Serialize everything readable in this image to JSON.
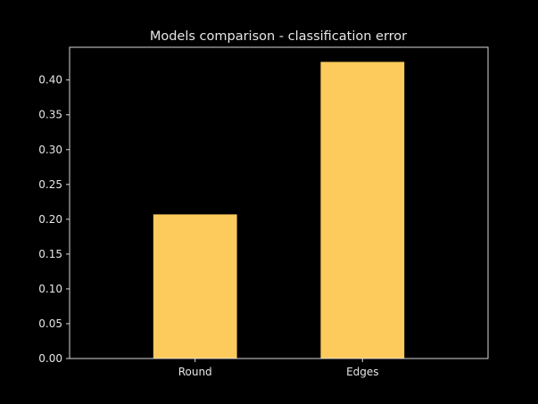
{
  "chart_data": {
    "type": "bar",
    "title": "Models comparison - classification error",
    "xlabel": "",
    "ylabel": "",
    "categories": [
      "Round",
      "Edges"
    ],
    "values": [
      0.207,
      0.426
    ],
    "ylim": [
      0,
      0.447
    ],
    "yticks": [
      "0.00",
      "0.05",
      "0.10",
      "0.15",
      "0.20",
      "0.25",
      "0.30",
      "0.35",
      "0.40"
    ],
    "grid": false,
    "legend": "none",
    "colors": {
      "bar": "#fdcb5b",
      "background": "#000000",
      "axes": "#d9d9d9",
      "text": "#e6e6e6"
    }
  }
}
